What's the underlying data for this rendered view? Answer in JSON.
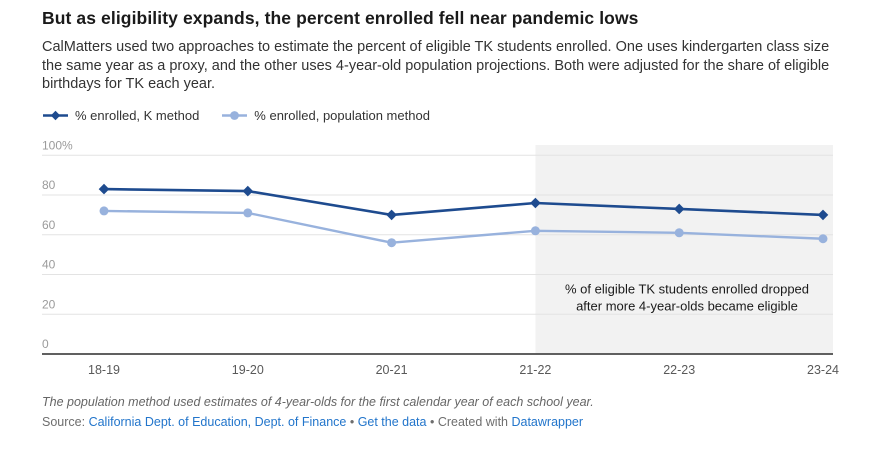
{
  "header": {
    "title": "But as eligibility expands, the percent enrolled fell near pandemic lows",
    "subtitle": "CalMatters used two approaches to estimate the percent of eligible TK students enrolled. One uses kindergarten class size the same year as a proxy, and the other uses 4-year-old population projections. Both were adjusted for the share of eligible birthdays for TK each year."
  },
  "legend": {
    "items": [
      {
        "label": "% enrolled, K method"
      },
      {
        "label": "% enrolled, population method"
      }
    ]
  },
  "chart_data": {
    "type": "line",
    "title": "But as eligibility expands, the percent enrolled fell near pandemic lows",
    "categories": [
      "18-19",
      "19-20",
      "20-21",
      "21-22",
      "22-23",
      "23-24"
    ],
    "series": [
      {
        "name": "% enrolled, K method",
        "marker": "diamond",
        "color": "#1e4b8f",
        "values": [
          83,
          82,
          70,
          76,
          73,
          70
        ]
      },
      {
        "name": "% enrolled, population method",
        "marker": "circle",
        "color": "#98b2dd",
        "values": [
          72,
          71,
          56,
          62,
          61,
          58
        ]
      }
    ],
    "ylim": [
      0,
      100
    ],
    "yticks": [
      0,
      20,
      40,
      60,
      80,
      100
    ],
    "ytick_labels": [
      "0",
      "20",
      "40",
      "60",
      "80",
      "100%"
    ],
    "grid": true,
    "legend_position": "top",
    "highlight_region": {
      "from_category": "21-22",
      "from_category_index": 3,
      "color": "#f2f2f2",
      "annotation_lines": [
        "% of eligible TK students enrolled dropped",
        "after more 4-year-olds became eligible"
      ],
      "annotation_color": "#1a1a1a"
    },
    "colors": {
      "gridline": "#e3e3e3",
      "axis_line": "#4a4a4a",
      "ytick_label": "#9b9b9b",
      "xtick_label": "#595959"
    }
  },
  "footer": {
    "footnote": "The population method used estimates of 4-year-olds for the first calendar year of each school year.",
    "source_prefix": "Source: ",
    "source_link": "California Dept. of Education, Dept. of Finance",
    "separator": " • ",
    "get_data_link": "Get the data",
    "created_with_prefix": "Created with ",
    "created_with_link": "Datawrapper"
  }
}
